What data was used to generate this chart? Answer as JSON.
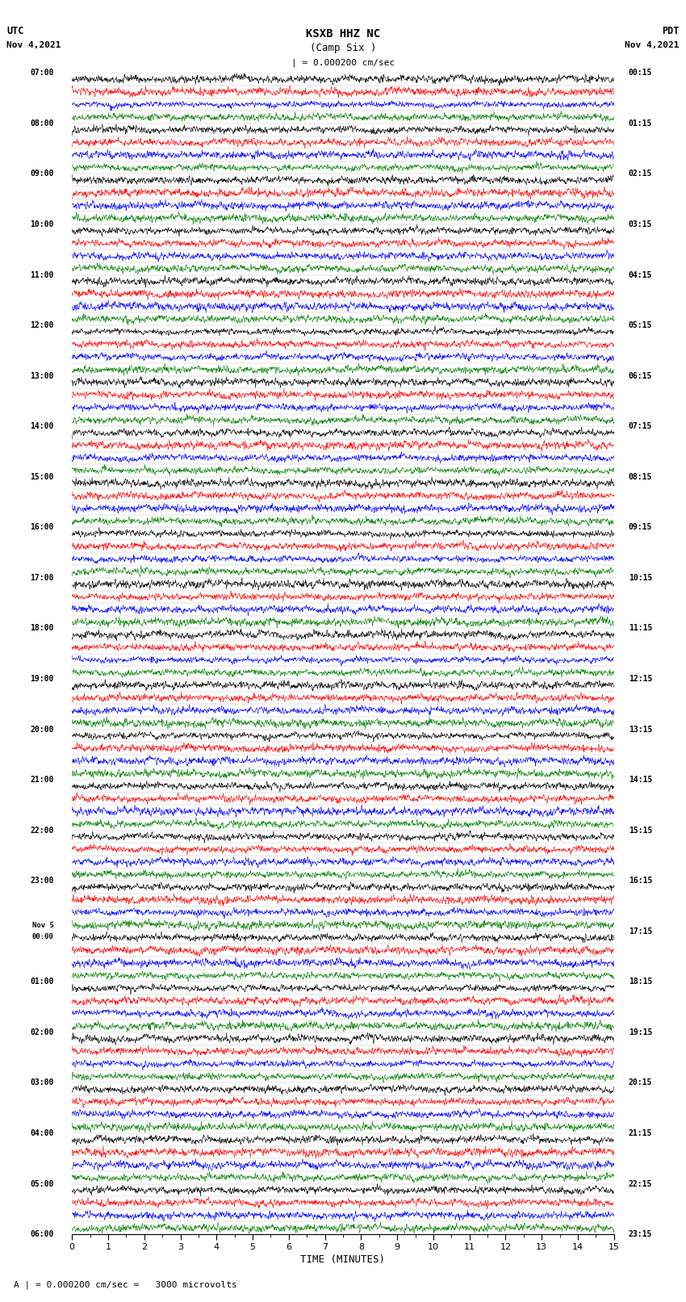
{
  "title_line1": "KSXB HHZ NC",
  "title_line2": "(Camp Six )",
  "scale_label": "| = 0.000200 cm/sec",
  "left_header_line1": "UTC",
  "left_header_line2": "Nov 4,2021",
  "right_header_line1": "PDT",
  "right_header_line2": "Nov 4,2021",
  "bottom_note": "A | = 0.000200 cm/sec =   3000 microvolts",
  "xlabel": "TIME (MINUTES)",
  "left_labels": [
    "07:00",
    "08:00",
    "09:00",
    "10:00",
    "11:00",
    "12:00",
    "13:00",
    "14:00",
    "15:00",
    "16:00",
    "17:00",
    "18:00",
    "19:00",
    "20:00",
    "21:00",
    "22:00",
    "23:00",
    "Nov 5\n00:00",
    "01:00",
    "02:00",
    "03:00",
    "04:00",
    "05:00",
    "06:00"
  ],
  "right_labels": [
    "00:15",
    "01:15",
    "02:15",
    "03:15",
    "04:15",
    "05:15",
    "06:15",
    "07:15",
    "08:15",
    "09:15",
    "10:15",
    "11:15",
    "12:15",
    "13:15",
    "14:15",
    "15:15",
    "16:15",
    "17:15",
    "18:15",
    "19:15",
    "20:15",
    "21:15",
    "22:15",
    "23:15"
  ],
  "n_traces": 92,
  "traces_per_hour": 4,
  "n_hours": 23,
  "n_points": 2000,
  "amplitude_scale": 0.48,
  "colors": [
    "black",
    "red",
    "blue",
    "green"
  ],
  "xmin": 0,
  "xmax": 15,
  "fig_width": 8.5,
  "fig_height": 16.13,
  "dpi": 100,
  "lw": 0.4
}
